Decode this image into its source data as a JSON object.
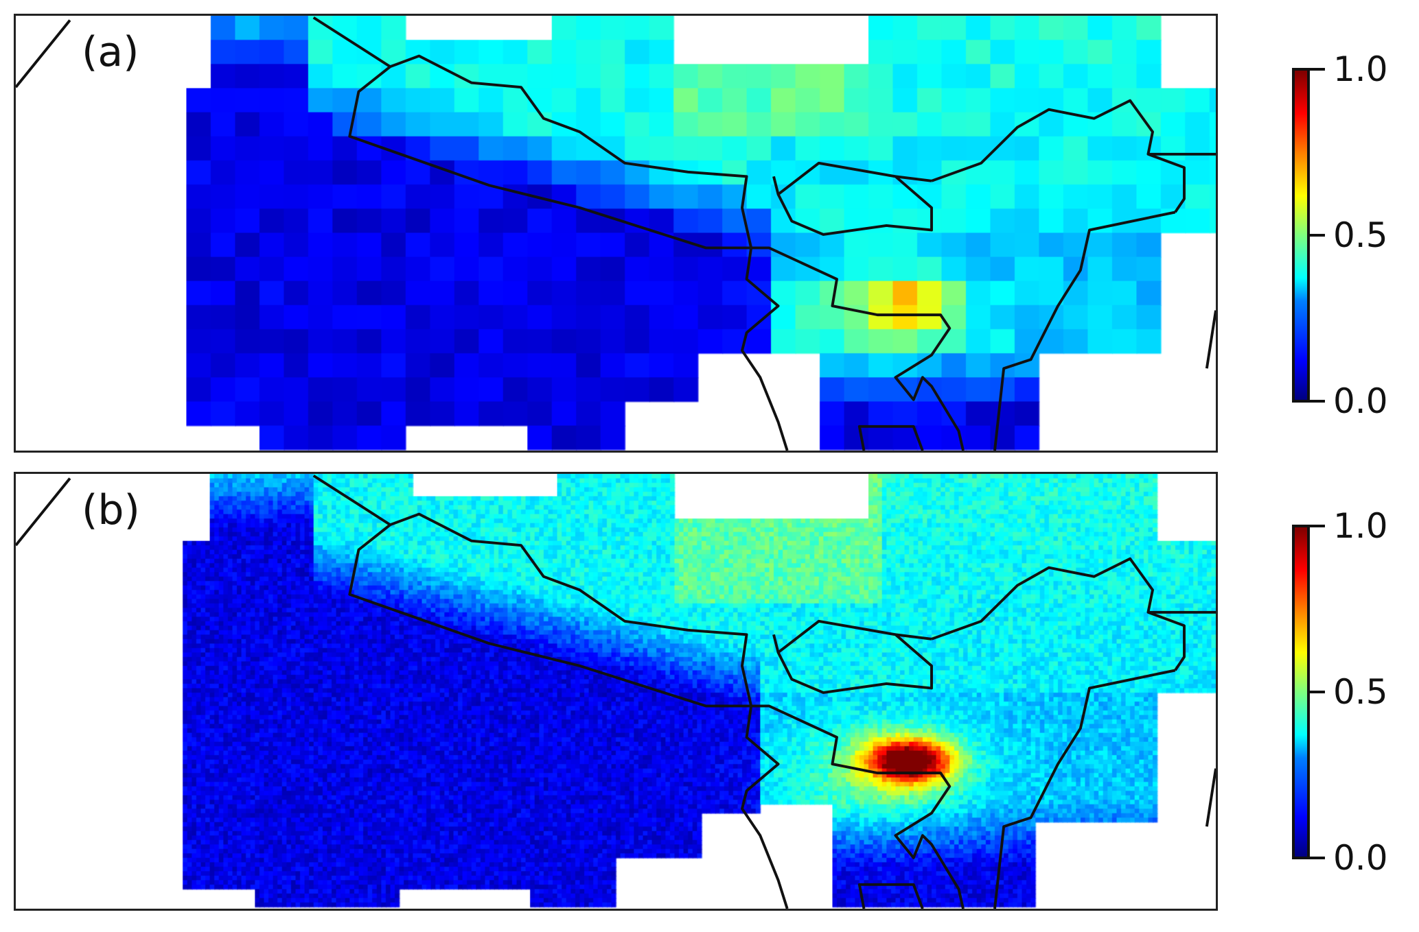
{
  "panels": [
    {
      "label": "(a)",
      "resolution": "coarse"
    },
    {
      "label": "(b)",
      "resolution": "fine"
    }
  ],
  "colorbar": {
    "colormap": "jet",
    "range": [
      0.0,
      1.0
    ],
    "ticks": [
      "1.0",
      "0.5",
      "0.0"
    ]
  },
  "colors": {
    "border": "#111111",
    "low": "#0000ff",
    "high": "#7f0000"
  }
}
